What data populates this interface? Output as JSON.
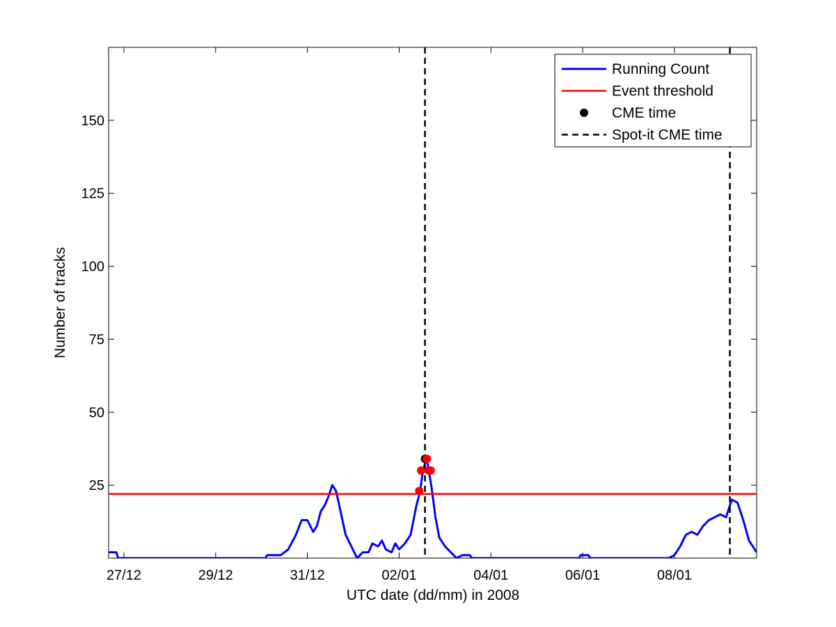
{
  "chart_data": {
    "type": "line",
    "xlabel": "UTC date (dd/mm) in 2008",
    "ylabel": "Number of tracks",
    "x_unit": "days",
    "xlim": [
      "26/12 16:00",
      "09/01 19:00"
    ],
    "ylim": [
      0,
      175
    ],
    "x_ticks": [
      {
        "label": "27/12",
        "value": "27/12"
      },
      {
        "label": "29/12",
        "value": "29/12"
      },
      {
        "label": "31/12",
        "value": "31/12"
      },
      {
        "label": "02/01",
        "value": "02/01"
      },
      {
        "label": "04/01",
        "value": "04/01"
      },
      {
        "label": "06/01",
        "value": "06/01"
      },
      {
        "label": "08/01",
        "value": "08/01"
      }
    ],
    "y_ticks": [
      25,
      50,
      75,
      100,
      125,
      150
    ],
    "grid": false,
    "legend_position": "top-right",
    "legend": [
      {
        "label": "Running Count",
        "style": "blue-line"
      },
      {
        "label": "Event threshold",
        "style": "red-line"
      },
      {
        "label": "CME time",
        "style": "black-dot"
      },
      {
        "label": "Spot-it CME time",
        "style": "black-dashed"
      }
    ],
    "series": [
      {
        "name": "Running Count",
        "color": "#0000ff",
        "points": [
          [
            "26/12 16:00",
            2
          ],
          [
            "26/12 20:00",
            2
          ],
          [
            "26/12 21:00",
            0
          ],
          [
            "28/12 12:00",
            0
          ],
          [
            "30/12 02:00",
            0
          ],
          [
            "30/12 03:00",
            1
          ],
          [
            "30/12 10:00",
            1
          ],
          [
            "30/12 14:00",
            3
          ],
          [
            "30/12 18:00",
            8
          ],
          [
            "30/12 21:00",
            13
          ],
          [
            "31/12 00:00",
            13
          ],
          [
            "31/12 03:00",
            9
          ],
          [
            "31/12 05:00",
            11
          ],
          [
            "31/12 07:00",
            16
          ],
          [
            "31/12 09:00",
            18
          ],
          [
            "31/12 11:00",
            21
          ],
          [
            "31/12 13:00",
            25
          ],
          [
            "31/12 15:00",
            23
          ],
          [
            "31/12 17:00",
            17
          ],
          [
            "31/12 20:00",
            8
          ],
          [
            "31/12 23:00",
            4
          ],
          [
            "01/01 02:00",
            0
          ],
          [
            "01/01 05:00",
            2
          ],
          [
            "01/01 08:00",
            2
          ],
          [
            "01/01 10:00",
            5
          ],
          [
            "01/01 13:00",
            4
          ],
          [
            "01/01 15:00",
            6
          ],
          [
            "01/01 17:00",
            3
          ],
          [
            "01/01 20:00",
            2
          ],
          [
            "01/01 22:00",
            5
          ],
          [
            "02/01 00:00",
            3
          ],
          [
            "02/01 03:00",
            5
          ],
          [
            "02/01 06:00",
            8
          ],
          [
            "02/01 09:00",
            18
          ],
          [
            "02/01 11:00",
            23
          ],
          [
            "02/01 12:00",
            28
          ],
          [
            "02/01 13:00",
            31
          ],
          [
            "02/01 14:00",
            34
          ],
          [
            "02/01 15:00",
            32
          ],
          [
            "02/01 16:00",
            28
          ],
          [
            "02/01 17:00",
            24
          ],
          [
            "02/01 19:00",
            14
          ],
          [
            "02/01 21:00",
            7
          ],
          [
            "03/01 00:00",
            4
          ],
          [
            "03/01 03:00",
            2
          ],
          [
            "03/01 06:00",
            0
          ],
          [
            "03/01 09:00",
            1
          ],
          [
            "03/01 13:00",
            1
          ],
          [
            "03/01 14:00",
            0
          ],
          [
            "05/01 22:00",
            0
          ],
          [
            "05/01 23:00",
            1
          ],
          [
            "06/01 03:00",
            1
          ],
          [
            "06/01 04:00",
            0
          ],
          [
            "07/01 21:00",
            0
          ],
          [
            "08/01 00:00",
            1
          ],
          [
            "08/01 03:00",
            4
          ],
          [
            "08/01 06:00",
            8
          ],
          [
            "08/01 09:00",
            9
          ],
          [
            "08/01 12:00",
            8
          ],
          [
            "08/01 15:00",
            11
          ],
          [
            "08/01 18:00",
            13
          ],
          [
            "08/01 21:00",
            14
          ],
          [
            "09/01 00:00",
            15
          ],
          [
            "09/01 03:00",
            14
          ],
          [
            "09/01 06:00",
            20
          ],
          [
            "09/01 09:00",
            19
          ],
          [
            "09/01 12:00",
            13
          ],
          [
            "09/01 15:00",
            6
          ],
          [
            "09/01 19:00",
            2
          ]
        ]
      }
    ],
    "threshold": {
      "name": "Event threshold",
      "value": 22,
      "color": "#ff0000"
    },
    "event_points": [
      {
        "x": "02/01 10:30",
        "y": 23,
        "color": "#ff0000"
      },
      {
        "x": "02/01 11:30",
        "y": 30,
        "color": "#ff0000"
      },
      {
        "x": "02/01 13:30",
        "y": 34,
        "color": "#000000"
      },
      {
        "x": "02/01 14:30",
        "y": 34,
        "color": "#ff0000"
      },
      {
        "x": "02/01 15:30",
        "y": 30,
        "color": "#ff0000"
      },
      {
        "x": "02/01 16:30",
        "y": 30,
        "color": "#ff0000"
      }
    ],
    "vertical_lines": [
      {
        "name": "Spot-it CME time",
        "x": "02/01 13:30",
        "style": "dashed"
      },
      {
        "name": "Spot-it CME time",
        "x": "09/01 05:00",
        "style": "dashed"
      }
    ]
  }
}
